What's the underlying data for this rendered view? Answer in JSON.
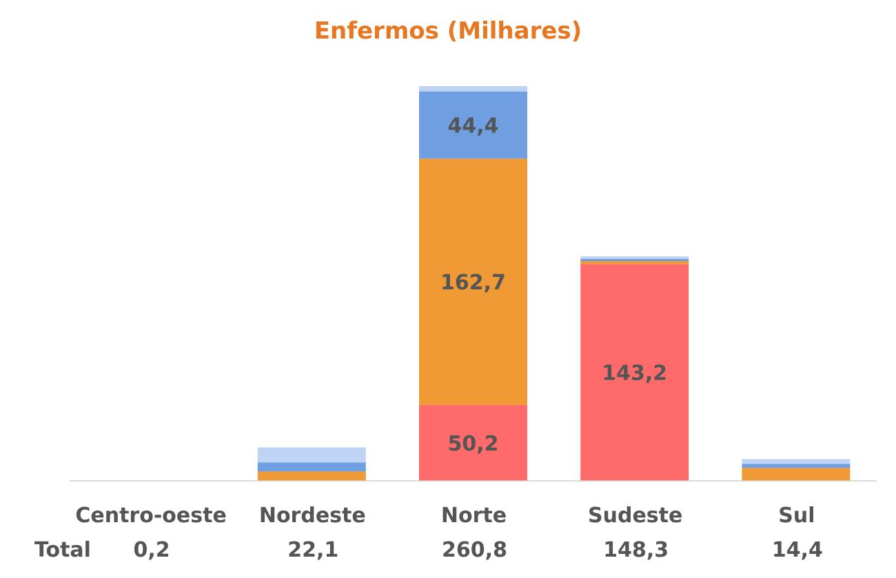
{
  "chart_data": {
    "type": "bar",
    "stacked": true,
    "title": "Enfermos (Milhares)",
    "xlabel": "",
    "ylabel": "",
    "ylim": [
      0,
      260.8
    ],
    "grid": false,
    "legend": "none",
    "categories": [
      "Centro-oeste",
      "Nordeste",
      "Norte",
      "Sudeste",
      "Sul"
    ],
    "series": [
      {
        "color": "#FF6B6B",
        "values": [
          0.0,
          0.0,
          50.2,
          143.2,
          0.0
        ],
        "labels": [
          "",
          "",
          "50,2",
          "143,2",
          ""
        ]
      },
      {
        "color": "#F09A36",
        "values": [
          0.1,
          6.2,
          162.7,
          2.0,
          8.6
        ],
        "labels": [
          "",
          "",
          "162,7",
          "",
          ""
        ]
      },
      {
        "color": "#6F9FE0",
        "values": [
          0.05,
          6.0,
          44.4,
          1.5,
          2.6
        ],
        "labels": [
          "",
          "",
          "44,4",
          "",
          ""
        ]
      },
      {
        "color": "#BFD4F5",
        "values": [
          0.05,
          9.9,
          3.5,
          1.6,
          3.2
        ],
        "labels": [
          "",
          "",
          "",
          "",
          ""
        ]
      }
    ],
    "totals_label": "Total",
    "totals": [
      "0,2",
      "22,1",
      "260,8",
      "148,3",
      "14,4"
    ]
  }
}
